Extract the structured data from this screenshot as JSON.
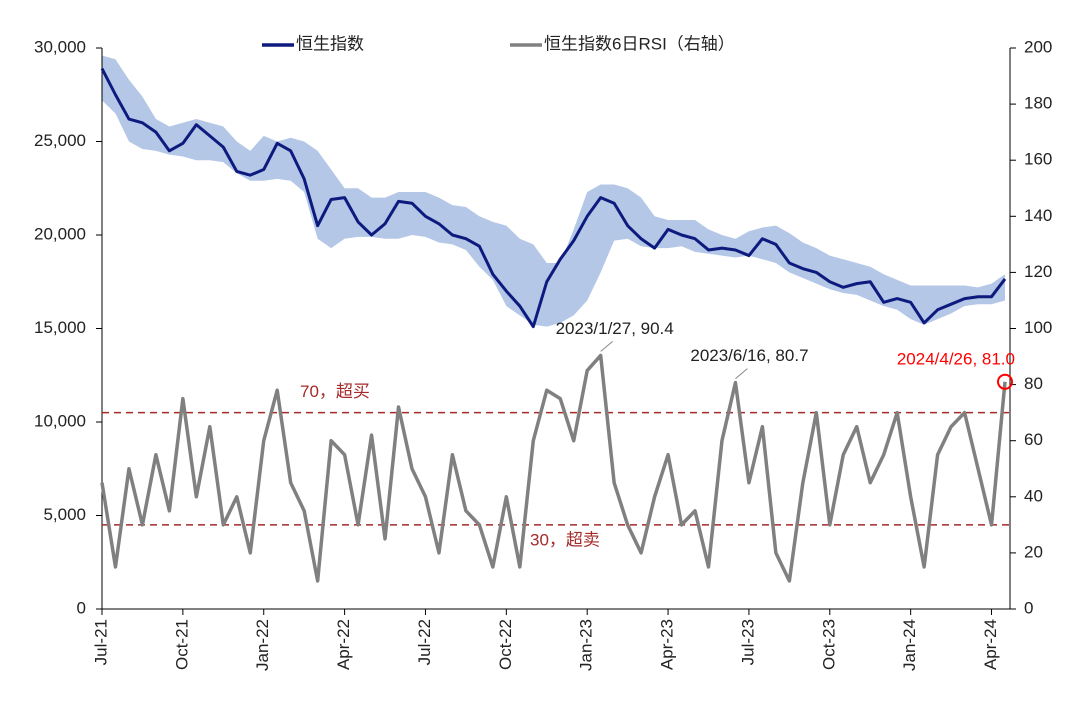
{
  "chart_data": {
    "type": "line",
    "categories": [
      "Jul-21",
      null,
      null,
      null,
      null,
      null,
      "Oct-21",
      null,
      null,
      null,
      null,
      null,
      "Jan-22",
      null,
      null,
      null,
      null,
      null,
      "Apr-22",
      null,
      null,
      null,
      null,
      null,
      "Jul-22",
      null,
      null,
      null,
      null,
      null,
      "Oct-22",
      null,
      null,
      null,
      null,
      null,
      "Jan-23",
      null,
      null,
      null,
      null,
      null,
      "Apr-23",
      null,
      null,
      null,
      null,
      null,
      "Jul-23",
      null,
      null,
      null,
      null,
      null,
      "Oct-23",
      null,
      null,
      null,
      null,
      null,
      "Jan-24",
      null,
      null,
      null,
      null,
      null,
      "Apr-24",
      null
    ],
    "series": [
      {
        "name": "恒生指数",
        "color": "#0d1a7e",
        "values": [
          28900,
          27500,
          26200,
          26000,
          25500,
          24500,
          24900,
          25900,
          25300,
          24700,
          23400,
          23200,
          23500,
          24900,
          24500,
          23000,
          20500,
          21900,
          22000,
          20700,
          20000,
          20600,
          21800,
          21700,
          21000,
          20600,
          20000,
          19800,
          19400,
          17900,
          17000,
          16200,
          15100,
          17500,
          18700,
          19700,
          21000,
          22000,
          21700,
          20500,
          19800,
          19300,
          20300,
          20000,
          19800,
          19200,
          19300,
          19200,
          18900,
          19800,
          19500,
          18500,
          18200,
          18000,
          17500,
          17200,
          17400,
          17500,
          16400,
          16600,
          16400,
          15300,
          16000,
          16300,
          16600,
          16700,
          16700,
          17650
        ]
      },
      {
        "name": "恒生指数6日RSI（右轴）",
        "color": "#808080",
        "axis": "y2",
        "values": [
          45,
          15,
          50,
          30,
          55,
          35,
          75,
          40,
          65,
          30,
          40,
          20,
          60,
          78,
          45,
          35,
          10,
          60,
          55,
          30,
          62,
          25,
          72,
          50,
          40,
          20,
          55,
          35,
          30,
          15,
          40,
          15,
          60,
          78,
          75,
          60,
          85,
          90.4,
          45,
          30,
          20,
          40,
          55,
          30,
          35,
          15,
          60,
          80.7,
          45,
          65,
          20,
          10,
          45,
          70,
          30,
          55,
          65,
          45,
          55,
          70,
          40,
          15,
          55,
          65,
          70,
          50,
          30,
          81
        ]
      }
    ],
    "band": {
      "color": "#b4c7e7",
      "upper": [
        29600,
        29400,
        28300,
        27400,
        26200,
        25800,
        26000,
        26200,
        26000,
        25800,
        25000,
        24500,
        25300,
        25000,
        25200,
        25000,
        24500,
        23500,
        22500,
        22500,
        22000,
        22000,
        22300,
        22300,
        22300,
        22000,
        21600,
        21500,
        21000,
        20700,
        20500,
        19800,
        19500,
        18500,
        18500,
        20300,
        22300,
        22700,
        22700,
        22500,
        22000,
        21000,
        20800,
        20800,
        20800,
        20300,
        20000,
        19800,
        20200,
        20400,
        20500,
        20100,
        19600,
        19300,
        18900,
        18700,
        18500,
        18300,
        17900,
        17600,
        17300,
        17300,
        17300,
        17300,
        17300,
        17200,
        17400,
        17900
      ],
      "lower": [
        27200,
        26500,
        25000,
        24600,
        24500,
        24300,
        24200,
        24000,
        24000,
        23900,
        23300,
        22900,
        22900,
        23000,
        22900,
        22300,
        19800,
        19300,
        19800,
        19900,
        19900,
        19800,
        19800,
        20000,
        19900,
        19600,
        19500,
        19200,
        18300,
        17600,
        16200,
        15700,
        15200,
        15100,
        15300,
        15700,
        16500,
        18000,
        19700,
        19800,
        19400,
        19300,
        19300,
        19400,
        19100,
        19000,
        18900,
        18800,
        18900,
        18700,
        18500,
        18000,
        17700,
        17400,
        17100,
        16900,
        16800,
        16500,
        16200,
        16000,
        15500,
        15200,
        15500,
        15800,
        16200,
        16300,
        16300,
        16500
      ]
    },
    "ylim": [
      0,
      30000
    ],
    "yticks": [
      0,
      {
        "value": 5000,
        "label": "5,000"
      },
      {
        "value": 10000,
        "label": "10,000"
      },
      {
        "value": 15000,
        "label": "15,000"
      },
      {
        "value": 20000,
        "label": "20,000"
      },
      {
        "value": 25000,
        "label": "25,000"
      },
      {
        "value": 30000,
        "label": "30,000"
      }
    ],
    "y2lim": [
      0,
      200
    ],
    "y2ticks": [
      0,
      20,
      40,
      60,
      80,
      100,
      120,
      140,
      160,
      180,
      200
    ],
    "ref_lines": [
      {
        "value": 70,
        "label": "70，超买",
        "color": "#a52a2a"
      },
      {
        "value": 30,
        "label": "30，超卖",
        "color": "#a52a2a"
      }
    ],
    "annotations": [
      {
        "text": "2023/1/27, 90.4",
        "value": 90.4,
        "color": "#222222"
      },
      {
        "text": "2023/6/16, 80.7",
        "value": 80.7,
        "color": "#222222"
      },
      {
        "text": "2024/4/26, 81.0",
        "value": 81,
        "color": "#ff0000"
      }
    ],
    "legend": "top"
  }
}
